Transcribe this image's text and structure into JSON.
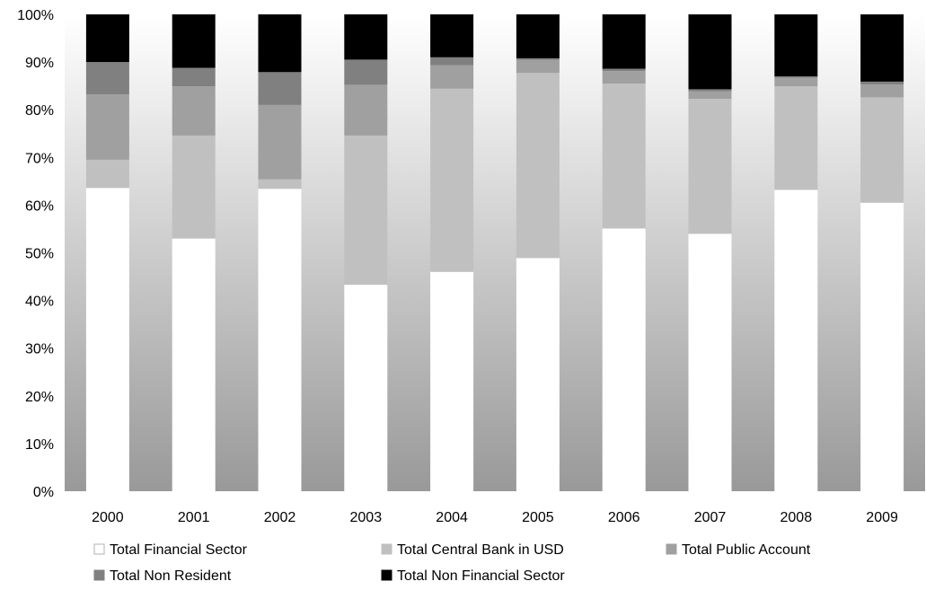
{
  "chart_data": {
    "type": "bar",
    "stacked": true,
    "percent_stacked": true,
    "title": "",
    "xlabel": "",
    "ylabel": "",
    "ylim": [
      0,
      100
    ],
    "yticks": [
      "0%",
      "10%",
      "20%",
      "30%",
      "40%",
      "50%",
      "60%",
      "70%",
      "80%",
      "90%",
      "100%"
    ],
    "categories": [
      "2000",
      "2001",
      "2002",
      "2003",
      "2004",
      "2005",
      "2006",
      "2007",
      "2008",
      "2009"
    ],
    "series": [
      {
        "name": "Total Financial Sector",
        "color": "#ffffff",
        "values": [
          63.6,
          53.0,
          63.4,
          43.3,
          46.0,
          48.9,
          55.1,
          54.0,
          63.2,
          60.5
        ]
      },
      {
        "name": "Total Central Bank in USD",
        "color": "#c0c0c0",
        "values": [
          5.9,
          21.6,
          2.0,
          31.3,
          38.4,
          38.8,
          30.4,
          28.3,
          21.7,
          22.1
        ]
      },
      {
        "name": "Total Public Account",
        "color": "#a0a0a0",
        "values": [
          13.7,
          10.3,
          15.6,
          10.6,
          4.9,
          2.8,
          2.6,
          1.6,
          1.8,
          2.7
        ]
      },
      {
        "name": "Total Non Resident",
        "color": "#808080",
        "values": [
          6.8,
          3.9,
          6.9,
          5.3,
          1.7,
          0.3,
          0.5,
          0.4,
          0.3,
          0.6
        ]
      },
      {
        "name": "Total Non Financial Sector",
        "color": "#000000",
        "values": [
          10.0,
          11.2,
          12.1,
          9.5,
          9.0,
          9.2,
          11.4,
          15.7,
          13.0,
          14.1
        ]
      }
    ],
    "grid": false,
    "legend_position": "bottom",
    "background": "vertical gradient white to grey"
  }
}
